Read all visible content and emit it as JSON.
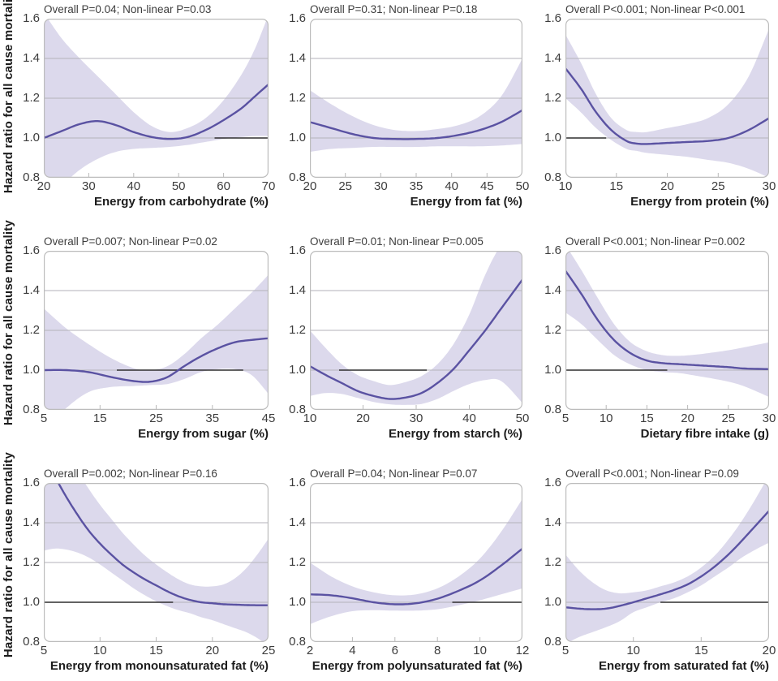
{
  "chart_data": {
    "type": "line",
    "description": "Restricted cubic spline hazard ratio curves with 95% confidence bands, 3x3 grid",
    "colors": {
      "curve": "#5a52a2",
      "band": "#dcd9ec",
      "grid": "#b3b2ba",
      "reference": "#2e2e2e",
      "border": "#bcbcbc",
      "tick": "#b9b9b9"
    },
    "shared": {
      "ylabel": "Hazard ratio for all cause mortality",
      "ylim": [
        0.8,
        1.6
      ],
      "y_ticks": [
        1.6,
        1.4,
        1.2,
        1.0,
        0.8
      ],
      "gridlines": [
        1.4,
        1.2,
        1.0
      ],
      "reference_value": 1.0,
      "legend": "none",
      "grid": "horizontal-only"
    },
    "panels": [
      {
        "title": "Overall P=0.04; Non-linear P=0.03",
        "xlabel": "Energy from carbohydrate (%)",
        "xlim": [
          20,
          70
        ],
        "x_ticks": [
          20,
          30,
          40,
          50,
          60,
          70
        ],
        "ref_segment": [
          58,
          70
        ],
        "x": [
          20,
          24,
          28,
          32,
          36,
          40,
          44,
          48,
          52,
          56,
          60,
          64,
          67,
          70
        ],
        "y": [
          1.0,
          1.035,
          1.07,
          1.085,
          1.065,
          1.03,
          1.005,
          0.995,
          1.005,
          1.04,
          1.09,
          1.15,
          1.21,
          1.27
        ],
        "upper": [
          1.63,
          1.5,
          1.4,
          1.31,
          1.22,
          1.13,
          1.06,
          1.03,
          1.05,
          1.1,
          1.19,
          1.32,
          1.45,
          1.62
        ],
        "lower": [
          0.67,
          0.76,
          0.84,
          0.895,
          0.93,
          0.945,
          0.95,
          0.955,
          0.965,
          0.98,
          0.995,
          1.005,
          1.01,
          1.01
        ]
      },
      {
        "title": "Overall P=0.31; Non-linear P=0.18",
        "xlabel": "Energy from fat (%)",
        "xlim": [
          20,
          50
        ],
        "x_ticks": [
          20,
          25,
          30,
          35,
          40,
          45,
          50
        ],
        "ref_segment": null,
        "x": [
          20,
          23,
          26,
          29,
          32,
          35,
          38,
          41,
          44,
          47,
          50
        ],
        "y": [
          1.08,
          1.05,
          1.02,
          1.0,
          0.995,
          0.995,
          1.0,
          1.015,
          1.04,
          1.08,
          1.14
        ],
        "upper": [
          1.24,
          1.17,
          1.11,
          1.065,
          1.04,
          1.035,
          1.045,
          1.065,
          1.11,
          1.21,
          1.4
        ],
        "lower": [
          0.93,
          0.945,
          0.95,
          0.955,
          0.955,
          0.955,
          0.958,
          0.958,
          0.958,
          0.962,
          0.97
        ]
      },
      {
        "title": "Overall P<0.001; Non-linear P<0.001",
        "xlabel": "Energy from protein (%)",
        "xlim": [
          10,
          30
        ],
        "x_ticks": [
          10,
          15,
          20,
          25,
          30
        ],
        "ref_segment": [
          10,
          14
        ],
        "x": [
          10,
          11.5,
          13,
          14.5,
          16,
          17,
          18,
          20,
          22,
          24,
          26,
          28,
          30
        ],
        "y": [
          1.35,
          1.25,
          1.13,
          1.04,
          0.985,
          0.972,
          0.97,
          0.975,
          0.98,
          0.985,
          1.0,
          1.04,
          1.1
        ],
        "upper": [
          1.52,
          1.38,
          1.22,
          1.1,
          1.04,
          1.03,
          1.03,
          1.05,
          1.07,
          1.1,
          1.17,
          1.31,
          1.55
        ],
        "lower": [
          1.2,
          1.13,
          1.05,
          0.99,
          0.945,
          0.935,
          0.925,
          0.915,
          0.905,
          0.89,
          0.875,
          0.845,
          0.8
        ]
      },
      {
        "title": "Overall P=0.007; Non-linear P=0.02",
        "xlabel": "Energy from sugar (%)",
        "xlim": [
          5,
          45
        ],
        "x_ticks": [
          5,
          15,
          25,
          35,
          45
        ],
        "ref_segment": [
          18,
          40.5
        ],
        "x": [
          5,
          9,
          13,
          17,
          21,
          24,
          27,
          30,
          33,
          36,
          39,
          42,
          45
        ],
        "y": [
          1.0,
          1.0,
          0.99,
          0.965,
          0.945,
          0.942,
          0.965,
          1.02,
          1.07,
          1.11,
          1.14,
          1.152,
          1.16
        ],
        "upper": [
          1.31,
          1.21,
          1.13,
          1.06,
          1.01,
          1.0,
          1.02,
          1.08,
          1.16,
          1.23,
          1.31,
          1.39,
          1.48
        ],
        "lower": [
          0.7,
          0.81,
          0.89,
          0.915,
          0.92,
          0.925,
          0.93,
          0.955,
          0.99,
          1.005,
          1.005,
          0.975,
          0.88
        ]
      },
      {
        "title": "Overall P=0.01; Non-linear P=0.005",
        "xlabel": "Energy from starch (%)",
        "xlim": [
          10,
          50
        ],
        "x_ticks": [
          10,
          20,
          30,
          40,
          50
        ],
        "ref_segment": [
          15.5,
          32
        ],
        "x": [
          10,
          13,
          16,
          19,
          22,
          25,
          28,
          31,
          34,
          37,
          40,
          43,
          46,
          50
        ],
        "y": [
          1.02,
          0.975,
          0.935,
          0.895,
          0.87,
          0.855,
          0.862,
          0.885,
          0.935,
          1.005,
          1.1,
          1.2,
          1.31,
          1.455
        ],
        "upper": [
          1.2,
          1.11,
          1.03,
          0.975,
          0.945,
          0.925,
          0.94,
          0.97,
          1.03,
          1.13,
          1.28,
          1.48,
          1.63,
          1.75
        ],
        "lower": [
          0.87,
          0.885,
          0.88,
          0.86,
          0.84,
          0.828,
          0.825,
          0.83,
          0.855,
          0.895,
          0.93,
          0.95,
          0.945,
          0.835
        ]
      },
      {
        "title": "Overall P<0.001; Non-linear P=0.002",
        "xlabel": "Dietary fibre intake (g)",
        "xlim": [
          5,
          30
        ],
        "x_ticks": [
          5,
          10,
          15,
          20,
          25,
          30
        ],
        "ref_segment": [
          5,
          17.5
        ],
        "x": [
          5,
          7,
          9,
          11,
          13,
          15,
          17,
          19,
          21,
          23,
          25,
          27,
          30
        ],
        "y": [
          1.5,
          1.38,
          1.25,
          1.15,
          1.085,
          1.048,
          1.035,
          1.03,
          1.025,
          1.02,
          1.015,
          1.008,
          1.005
        ],
        "upper": [
          1.63,
          1.5,
          1.36,
          1.23,
          1.14,
          1.095,
          1.075,
          1.072,
          1.078,
          1.088,
          1.1,
          1.115,
          1.14
        ],
        "lower": [
          1.29,
          1.23,
          1.15,
          1.075,
          1.028,
          1.0,
          0.99,
          0.985,
          0.972,
          0.958,
          0.942,
          0.918,
          0.865
        ]
      },
      {
        "title": "Overall P=0.002; Non-linear P=0.16",
        "xlabel": "Energy from monounsaturated fat (%)",
        "xlim": [
          5,
          25
        ],
        "x_ticks": [
          5,
          10,
          15,
          20,
          25
        ],
        "ref_segment": [
          5,
          16.5
        ],
        "x": [
          5,
          6,
          7,
          8,
          9,
          10,
          11,
          12,
          13,
          14,
          15,
          16,
          17,
          18,
          19,
          20,
          21,
          22,
          23,
          24,
          25
        ],
        "y": [
          1.73,
          1.63,
          1.53,
          1.44,
          1.36,
          1.295,
          1.24,
          1.19,
          1.15,
          1.115,
          1.085,
          1.055,
          1.03,
          1.012,
          1.0,
          0.995,
          0.99,
          0.988,
          0.986,
          0.985,
          0.985
        ],
        "upper": [
          2.0,
          1.88,
          1.77,
          1.66,
          1.57,
          1.49,
          1.42,
          1.35,
          1.29,
          1.235,
          1.19,
          1.15,
          1.115,
          1.09,
          1.08,
          1.08,
          1.09,
          1.12,
          1.17,
          1.24,
          1.32
        ],
        "lower": [
          1.26,
          1.27,
          1.265,
          1.25,
          1.225,
          1.19,
          1.15,
          1.11,
          1.07,
          1.035,
          1.005,
          0.98,
          0.96,
          0.945,
          0.925,
          0.91,
          0.89,
          0.87,
          0.85,
          0.82,
          0.78
        ]
      },
      {
        "title": "Overall P=0.04; Non-linear P=0.07",
        "xlabel": "Energy from polyunsaturated fat (%)",
        "xlim": [
          2,
          12
        ],
        "x_ticks": [
          2,
          4,
          6,
          8,
          10,
          12
        ],
        "ref_segment": [
          8.7,
          12
        ],
        "x": [
          2,
          3,
          4,
          5,
          6,
          7,
          8,
          9,
          10,
          11,
          12
        ],
        "y": [
          1.04,
          1.035,
          1.02,
          1.0,
          0.99,
          0.995,
          1.018,
          1.058,
          1.11,
          1.185,
          1.27
        ],
        "upper": [
          1.2,
          1.13,
          1.08,
          1.05,
          1.035,
          1.04,
          1.07,
          1.13,
          1.22,
          1.355,
          1.52
        ],
        "lower": [
          0.89,
          0.93,
          0.955,
          0.96,
          0.958,
          0.958,
          0.965,
          0.985,
          1.01,
          1.04,
          1.07
        ]
      },
      {
        "title": "Overall P<0.001; Non-linear P=0.09",
        "xlabel": "Energy from saturated fat (%)",
        "xlim": [
          5,
          20
        ],
        "x_ticks": [
          5,
          10,
          15,
          20
        ],
        "ref_segment": [
          12,
          20
        ],
        "x": [
          5,
          6,
          7,
          8,
          9,
          10,
          11,
          12,
          13,
          14,
          15,
          16,
          17,
          18,
          19,
          20
        ],
        "y": [
          0.975,
          0.968,
          0.965,
          0.968,
          0.982,
          1.0,
          1.02,
          1.04,
          1.062,
          1.09,
          1.13,
          1.18,
          1.24,
          1.31,
          1.385,
          1.46
        ],
        "upper": [
          1.24,
          1.16,
          1.1,
          1.06,
          1.045,
          1.05,
          1.06,
          1.08,
          1.1,
          1.13,
          1.175,
          1.235,
          1.315,
          1.41,
          1.52,
          1.64
        ],
        "lower": [
          0.79,
          0.825,
          0.85,
          0.875,
          0.905,
          0.95,
          0.975,
          1.0,
          1.02,
          1.05,
          1.085,
          1.13,
          1.175,
          1.225,
          1.265,
          1.3
        ]
      }
    ]
  }
}
